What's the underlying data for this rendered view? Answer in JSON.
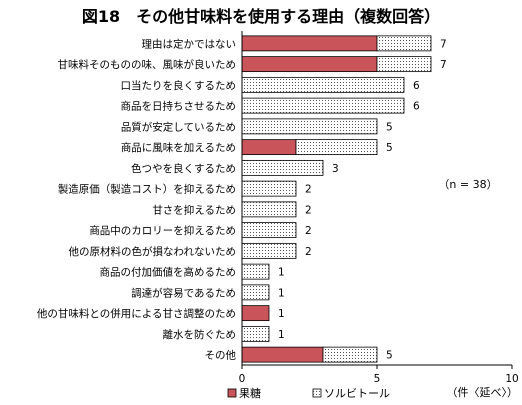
{
  "chart_data": {
    "type": "bar",
    "orientation": "horizontal",
    "stacked": true,
    "title": "図18　その他甘味料を使用する理由（複数回答）",
    "categories": [
      "理由は定かではない",
      "甘味料そのものの味、風味が良いため",
      "口当たりを良くするため",
      "商品を日持ちさせるため",
      "品質が安定しているため",
      "商品に風味を加えるため",
      "色つやを良くするため",
      "製造原価（製造コスト）を抑えるため",
      "甘さを抑えるため",
      "商品中のカロリーを抑えるため",
      "他の原材料の色が損なわれないため",
      "商品の付加価値を高めるため",
      "調達が容易であるため",
      "他の甘味料との併用による甘さ調整のため",
      "離水を防ぐため",
      "その他"
    ],
    "series": [
      {
        "name": "果糖",
        "color": "#c9545a",
        "pattern": "solid",
        "values": [
          5,
          5,
          0,
          0,
          0,
          2,
          0,
          0,
          0,
          0,
          0,
          0,
          0,
          1,
          0,
          3
        ]
      },
      {
        "name": "ソルビトール",
        "color": "#ffffff",
        "pattern": "dotted",
        "values": [
          2,
          2,
          6,
          6,
          5,
          3,
          3,
          2,
          2,
          2,
          2,
          1,
          1,
          0,
          1,
          2
        ]
      }
    ],
    "totals": [
      7,
      7,
      6,
      6,
      5,
      5,
      3,
      2,
      2,
      2,
      2,
      1,
      1,
      1,
      1,
      5
    ],
    "xlim": [
      0,
      10
    ],
    "xticks": [
      0,
      5,
      10
    ],
    "xlabel": "（件〈延べ〉）",
    "annotation": "（n = 38）",
    "legend_position": "bottom",
    "grid": false
  }
}
